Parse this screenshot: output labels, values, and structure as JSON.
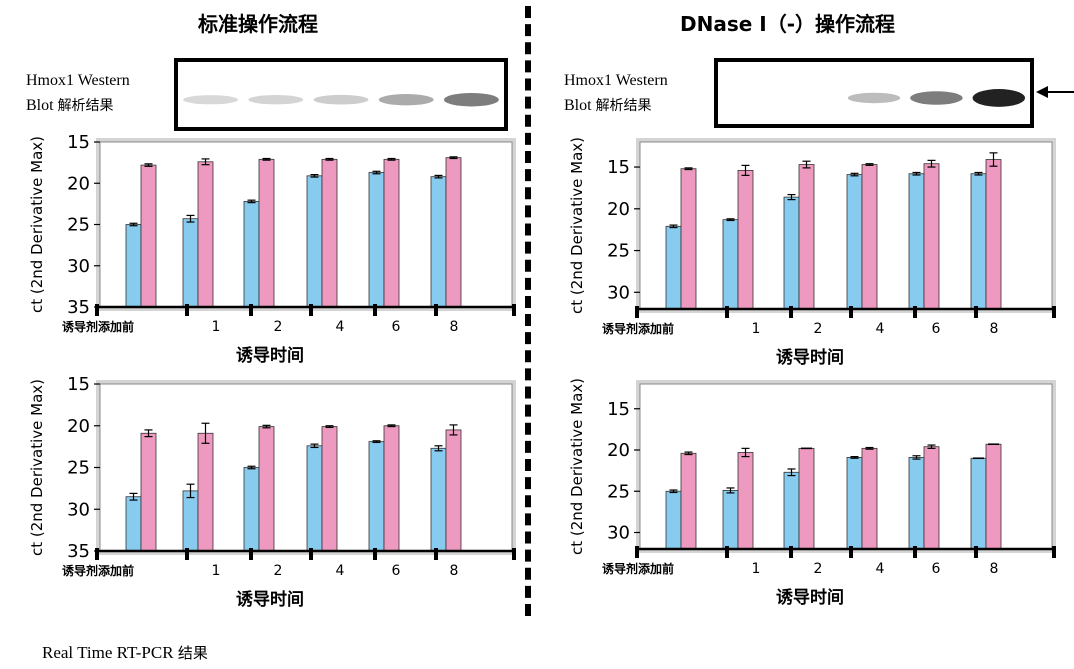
{
  "left_title": "标准操作流程",
  "right_title": "DNase I（-）操作流程",
  "western_blot": {
    "line1": "Hmox1  Western",
    "line2_latin": "Blot ",
    "line2_cn": "解析结果",
    "left_band_intensity": [
      0.12,
      0.14,
      0.17,
      0.33,
      0.55
    ],
    "right_band_intensity": [
      0.0,
      0.0,
      0.25,
      0.55,
      0.98
    ]
  },
  "footnote_latin": "Real Time RT-PCR ",
  "footnote_cn": "结果",
  "colors": {
    "blue": "#87cbef",
    "pink": "#ee9ac0",
    "plot_bg": "#d4d4d4"
  },
  "chart_data": [
    {
      "type": "bar",
      "panel": "left-top",
      "ylabel": "ct (2nd Derivative Max)",
      "xlabel": "诱导时间",
      "categories": [
        "诱导剂添加前",
        "1",
        "2",
        "4",
        "6",
        "8"
      ],
      "ylim": [
        35,
        15
      ],
      "yticks": [
        15,
        20,
        25,
        30,
        35
      ],
      "series": [
        {
          "values": [
            25.0,
            24.3,
            22.2,
            19.1,
            18.7,
            19.2
          ],
          "errors": [
            0.15,
            0.4,
            0.15,
            0.15,
            0.15,
            0.15
          ]
        },
        {
          "values": [
            17.8,
            17.4,
            17.1,
            17.1,
            17.1,
            16.9
          ],
          "errors": [
            0.15,
            0.35,
            0.1,
            0.1,
            0.1,
            0.1
          ]
        }
      ]
    },
    {
      "type": "bar",
      "panel": "left-bottom",
      "ylabel": "ct (2nd Derivative Max)",
      "xlabel": "诱导时间",
      "categories": [
        "诱导剂添加前",
        "1",
        "2",
        "4",
        "6",
        "8"
      ],
      "ylim": [
        35,
        15
      ],
      "yticks": [
        15,
        20,
        25,
        30,
        35
      ],
      "series": [
        {
          "values": [
            28.5,
            27.8,
            25.0,
            22.4,
            21.9,
            22.7
          ],
          "errors": [
            0.4,
            0.8,
            0.15,
            0.2,
            0.1,
            0.3
          ]
        },
        {
          "values": [
            20.9,
            20.9,
            20.1,
            20.1,
            20.0,
            20.5
          ],
          "errors": [
            0.4,
            1.2,
            0.15,
            0.1,
            0.1,
            0.6
          ]
        }
      ]
    },
    {
      "type": "bar",
      "panel": "right-top",
      "ylabel": "ct (2nd Derivative Max)",
      "xlabel": "诱导时间",
      "categories": [
        "诱导剂添加前",
        "1",
        "2",
        "4",
        "6",
        "8"
      ],
      "ylim": [
        32,
        12
      ],
      "yticks": [
        15,
        20,
        25,
        30
      ],
      "series": [
        {
          "values": [
            22.1,
            21.3,
            18.6,
            15.9,
            15.8,
            15.8
          ],
          "errors": [
            0.15,
            0.1,
            0.3,
            0.15,
            0.15,
            0.15
          ]
        },
        {
          "values": [
            15.2,
            15.4,
            14.7,
            14.7,
            14.6,
            14.1
          ],
          "errors": [
            0.1,
            0.6,
            0.4,
            0.1,
            0.4,
            0.8
          ]
        }
      ]
    },
    {
      "type": "bar",
      "panel": "right-bottom",
      "ylabel": "ct (2nd Derivative Max)",
      "xlabel": "诱导时间",
      "categories": [
        "诱导剂添加前",
        "1",
        "2",
        "4",
        "6",
        "8"
      ],
      "ylim": [
        32,
        12
      ],
      "yticks": [
        15,
        20,
        25,
        30
      ],
      "series": [
        {
          "values": [
            25.0,
            24.9,
            22.7,
            20.9,
            20.9,
            21.0
          ],
          "errors": [
            0.15,
            0.3,
            0.4,
            0.1,
            0.2,
            0.0
          ]
        },
        {
          "values": [
            20.4,
            20.3,
            19.8,
            19.8,
            19.6,
            19.3
          ],
          "errors": [
            0.15,
            0.5,
            0.0,
            0.1,
            0.2,
            0.0
          ]
        }
      ]
    }
  ]
}
